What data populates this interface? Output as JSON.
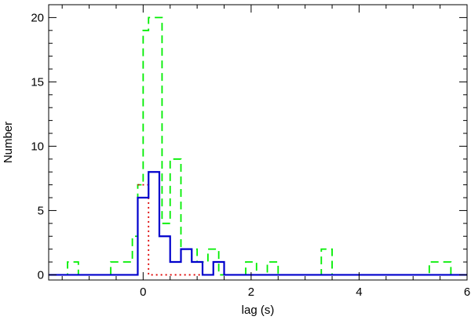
{
  "chart_data": {
    "type": "step-histogram",
    "xlabel": "lag (s)",
    "ylabel": "Number",
    "xlim": [
      -1.75,
      6.0
    ],
    "ylim": [
      -0.4,
      21.0
    ],
    "xticks": [
      0,
      2,
      4,
      6
    ],
    "yticks": [
      0,
      5,
      10,
      15,
      20
    ],
    "grid": false,
    "legend": "none",
    "series": [
      {
        "color": "#00ee00",
        "style": "dashed",
        "steps": [
          {
            "x0": -1.75,
            "x1": -1.4,
            "y": 0
          },
          {
            "x0": -1.4,
            "x1": -1.2,
            "y": 1
          },
          {
            "x0": -1.2,
            "x1": -0.6,
            "y": 0
          },
          {
            "x0": -0.6,
            "x1": -0.2,
            "y": 1
          },
          {
            "x0": -0.2,
            "x1": -0.1,
            "y": 3
          },
          {
            "x0": -0.1,
            "x1": 0.0,
            "y": 7
          },
          {
            "x0": 0.0,
            "x1": 0.1,
            "y": 19
          },
          {
            "x0": 0.1,
            "x1": 0.35,
            "y": 20
          },
          {
            "x0": 0.35,
            "x1": 0.5,
            "y": 4
          },
          {
            "x0": 0.5,
            "x1": 0.7,
            "y": 9
          },
          {
            "x0": 0.7,
            "x1": 1.0,
            "y": 2
          },
          {
            "x0": 1.0,
            "x1": 1.2,
            "y": 1
          },
          {
            "x0": 1.2,
            "x1": 1.4,
            "y": 2
          },
          {
            "x0": 1.4,
            "x1": 1.9,
            "y": 0
          },
          {
            "x0": 1.9,
            "x1": 2.1,
            "y": 1
          },
          {
            "x0": 2.1,
            "x1": 2.3,
            "y": 0
          },
          {
            "x0": 2.3,
            "x1": 2.5,
            "y": 1
          },
          {
            "x0": 2.5,
            "x1": 3.3,
            "y": 0
          },
          {
            "x0": 3.3,
            "x1": 3.5,
            "y": 2
          },
          {
            "x0": 3.5,
            "x1": 5.3,
            "y": 0
          },
          {
            "x0": 5.3,
            "x1": 5.7,
            "y": 1
          },
          {
            "x0": 5.7,
            "x1": 6.0,
            "y": 0
          }
        ]
      },
      {
        "color": "#dd0000",
        "style": "dotted",
        "steps": [
          {
            "x0": -0.1,
            "x1": 0.1,
            "y": 7
          },
          {
            "x0": 0.1,
            "x1": 1.1,
            "y": 0
          }
        ]
      },
      {
        "color": "#0000cc",
        "style": "solid",
        "steps": [
          {
            "x0": -1.75,
            "x1": -0.1,
            "y": 0
          },
          {
            "x0": -0.1,
            "x1": 0.1,
            "y": 6
          },
          {
            "x0": 0.1,
            "x1": 0.3,
            "y": 8
          },
          {
            "x0": 0.3,
            "x1": 0.5,
            "y": 3
          },
          {
            "x0": 0.5,
            "x1": 0.7,
            "y": 1
          },
          {
            "x0": 0.7,
            "x1": 0.9,
            "y": 2
          },
          {
            "x0": 0.9,
            "x1": 1.1,
            "y": 1
          },
          {
            "x0": 1.1,
            "x1": 1.3,
            "y": 0
          },
          {
            "x0": 1.3,
            "x1": 1.5,
            "y": 1
          },
          {
            "x0": 1.5,
            "x1": 6.0,
            "y": 0
          }
        ]
      }
    ]
  }
}
